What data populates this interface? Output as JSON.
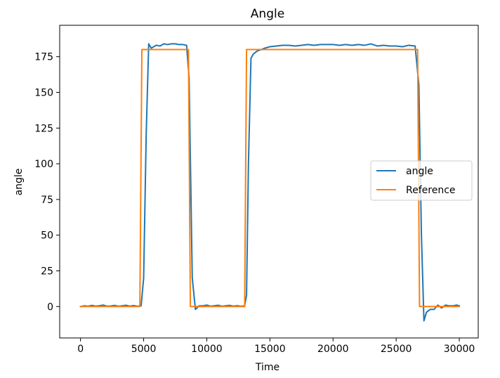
{
  "chart_data": {
    "type": "line",
    "title": "Angle",
    "xlabel": "Time",
    "ylabel": "angle",
    "xlim": [
      -1650,
      31500
    ],
    "ylim": [
      -22,
      197
    ],
    "xticks": [
      0,
      5000,
      10000,
      15000,
      20000,
      25000,
      30000
    ],
    "yticks": [
      0,
      25,
      50,
      75,
      100,
      125,
      150,
      175
    ],
    "grid": false,
    "legend_position": "center-right",
    "series": [
      {
        "name": "angle",
        "color": "#1f77b4",
        "x": [
          0,
          300,
          600,
          900,
          1200,
          1500,
          1800,
          2100,
          2400,
          2700,
          3000,
          3300,
          3600,
          3900,
          4200,
          4500,
          4800,
          5000,
          5200,
          5400,
          5600,
          5800,
          6000,
          6300,
          6600,
          6900,
          7200,
          7500,
          7800,
          8100,
          8400,
          8600,
          8850,
          9100,
          9400,
          9700,
          10000,
          10300,
          10600,
          10900,
          11200,
          11500,
          11800,
          12100,
          12400,
          12700,
          13000,
          13150,
          13300,
          13500,
          13700,
          14000,
          14300,
          14600,
          15000,
          15500,
          16000,
          16500,
          17000,
          17500,
          18000,
          18500,
          19000,
          19500,
          20000,
          20500,
          21000,
          21500,
          22000,
          22500,
          23000,
          23500,
          24000,
          24500,
          25000,
          25500,
          26000,
          26500,
          26800,
          27000,
          27200,
          27400,
          27700,
          28000,
          28300,
          28600,
          28900,
          29200,
          29500,
          29800,
          30000
        ],
        "y": [
          0,
          0.5,
          0.2,
          0.8,
          0.3,
          0.6,
          1,
          0.2,
          0.4,
          0.8,
          0.2,
          0.5,
          0.9,
          0.3,
          0.7,
          0.2,
          0.5,
          20,
          120,
          184,
          181,
          182,
          183,
          182.5,
          184,
          183.5,
          184,
          184,
          183.5,
          183.5,
          183,
          160,
          20,
          -2,
          0.5,
          0.5,
          1,
          0.2,
          0.6,
          0.9,
          0.2,
          0.5,
          0.8,
          0.3,
          0.6,
          0.2,
          0.5,
          8,
          100,
          174,
          177,
          179,
          180,
          181,
          182,
          182.5,
          183,
          183,
          182.5,
          183,
          183.5,
          183,
          183.5,
          183.5,
          183.5,
          183,
          183.5,
          183,
          183.5,
          183,
          184,
          182.5,
          183,
          182.5,
          182.5,
          182,
          183,
          182.5,
          155,
          50,
          -10,
          -4,
          -2,
          -2,
          1,
          -1,
          1,
          0.5,
          0.5,
          1,
          0.5
        ]
      },
      {
        "name": "Reference",
        "color": "#ff7f0e",
        "x": [
          0,
          4700,
          4860,
          8550,
          8700,
          13000,
          13150,
          26700,
          26850,
          30000
        ],
        "y": [
          0,
          0,
          180,
          180,
          0,
          0,
          180,
          180,
          0,
          0
        ]
      }
    ]
  }
}
